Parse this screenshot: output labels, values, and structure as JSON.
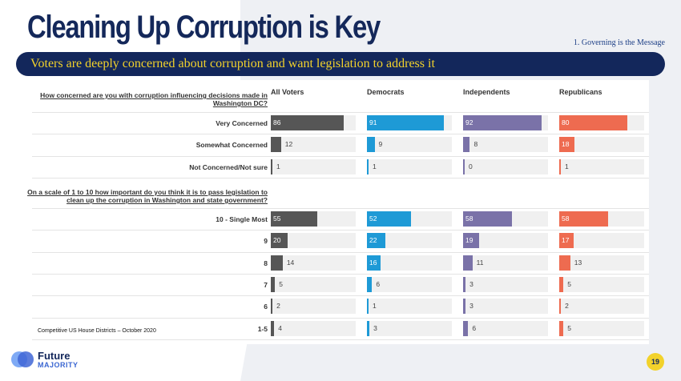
{
  "title": "Cleaning Up Corruption is Key",
  "section_tag": "1. Governing is the Message",
  "banner": "Voters are deeply concerned about corruption and want legislation to address it",
  "footnote": "Competitive US House Districts – October 2020",
  "logo": {
    "line1": "Future",
    "line2": "MAJORITY"
  },
  "page_number": "19",
  "colors": {
    "all_voters": "#565656",
    "democrats": "#1e9ad6",
    "independents": "#7a72a8",
    "republicans": "#ee6b50",
    "navy": "#13275b",
    "yellow": "#f2d22b"
  },
  "chart_data": {
    "type": "bar",
    "series_names": [
      "All Voters",
      "Democrats",
      "Independents",
      "Republicans"
    ],
    "xlim": [
      0,
      100
    ],
    "questions": [
      {
        "question": "How concerned are you with corruption influencing decisions made in Washington DC?",
        "rows": [
          {
            "label": "Very Concerned",
            "values": [
              86,
              91,
              92,
              80
            ]
          },
          {
            "label": "Somewhat Concerned",
            "values": [
              12,
              9,
              8,
              18
            ]
          },
          {
            "label": "Not Concerned/Not sure",
            "values": [
              1,
              1,
              0,
              1
            ]
          }
        ]
      },
      {
        "question": "On a scale of 1 to 10 how important do you think it is to pass legislation to clean up the corruption in Washington and state government?",
        "rows": [
          {
            "label": "10 - Single Most",
            "values": [
              55,
              52,
              58,
              58
            ]
          },
          {
            "label": "9",
            "values": [
              20,
              22,
              19,
              17
            ]
          },
          {
            "label": "8",
            "values": [
              14,
              16,
              11,
              13
            ]
          },
          {
            "label": "7",
            "values": [
              5,
              6,
              3,
              5
            ]
          },
          {
            "label": "6",
            "values": [
              2,
              1,
              3,
              2
            ]
          },
          {
            "label": "1-5",
            "values": [
              4,
              3,
              6,
              5
            ]
          }
        ]
      }
    ]
  }
}
